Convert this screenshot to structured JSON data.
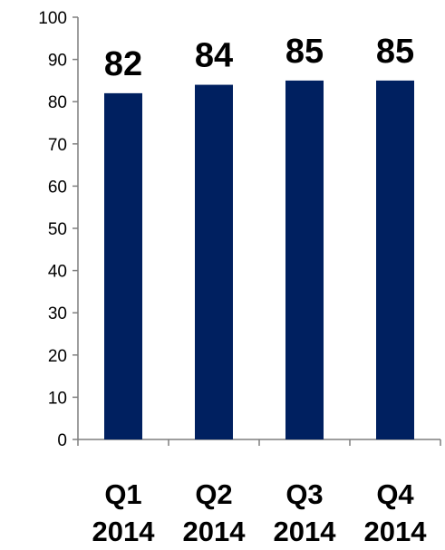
{
  "chart_data": {
    "type": "bar",
    "categories": [
      [
        "Q1",
        "2014"
      ],
      [
        "Q2",
        "2014"
      ],
      [
        "Q3",
        "2014"
      ],
      [
        "Q4",
        "2014"
      ]
    ],
    "values": [
      82,
      84,
      85,
      85
    ],
    "data_labels": [
      "82",
      "84",
      "85",
      "85"
    ],
    "ylim": [
      0,
      100
    ],
    "yticks": [
      0,
      10,
      20,
      30,
      40,
      50,
      60,
      70,
      80,
      90,
      100
    ],
    "ytick_labels": [
      "0",
      "10",
      "20",
      "30",
      "40",
      "50",
      "60",
      "70",
      "80",
      "90",
      "100"
    ],
    "title": "",
    "xlabel": "",
    "ylabel": "",
    "grid": false,
    "legend": "none",
    "bar_color": "#002060",
    "axis_color": "#7f7f7f"
  }
}
